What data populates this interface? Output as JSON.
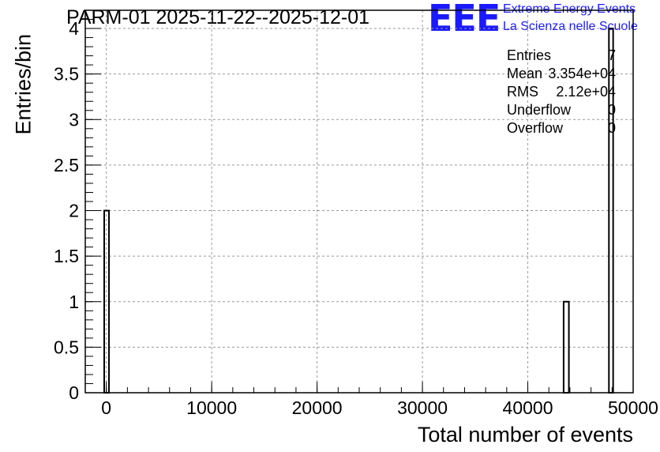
{
  "title": "PARM-01 2025-11-22--2025-12-01",
  "logo": {
    "mark": "EEE",
    "line1": "Extreme Energy Events",
    "line2": "La Scienza nelle Scuole",
    "color": "#1a1aff"
  },
  "stats": [
    {
      "label": "Entries",
      "value": "7"
    },
    {
      "label": "Mean",
      "value": "3.354e+04"
    },
    {
      "label": "RMS",
      "value": "2.12e+04"
    },
    {
      "label": "Underflow",
      "value": "0"
    },
    {
      "label": "Overflow",
      "value": "0"
    }
  ],
  "chart_data": {
    "type": "bar",
    "title": "PARM-01 2025-11-22--2025-12-01",
    "xlabel": "Total number of events",
    "ylabel": "Entries/bin",
    "xlim": [
      -2000,
      50000
    ],
    "ylim": [
      0,
      4.2
    ],
    "grid": true,
    "x_ticks": [
      "0",
      "10000",
      "20000",
      "30000",
      "40000",
      "50000"
    ],
    "y_ticks": [
      "0",
      "0.5",
      "1",
      "1.5",
      "2",
      "2.5",
      "3",
      "3.5",
      "4"
    ],
    "bins": [
      {
        "x_low": -200,
        "x_high": 250,
        "value": 2
      },
      {
        "x_low": 43400,
        "x_high": 43900,
        "value": 1
      },
      {
        "x_low": 47700,
        "x_high": 48100,
        "value": 4
      }
    ]
  }
}
